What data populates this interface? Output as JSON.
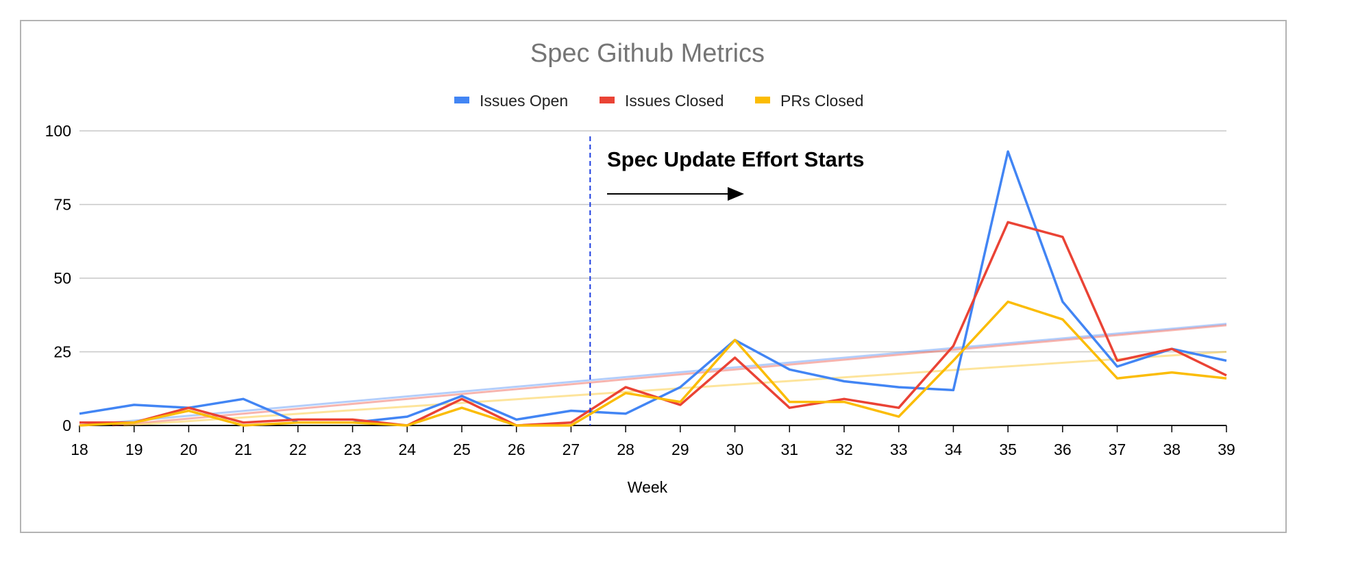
{
  "chart_data": {
    "type": "line",
    "title": "Spec Github Metrics",
    "xlabel": "Week",
    "ylabel": "",
    "categories": [
      "18",
      "19",
      "20",
      "21",
      "22",
      "23",
      "24",
      "25",
      "26",
      "27",
      "28",
      "29",
      "30",
      "31",
      "32",
      "33",
      "34",
      "35",
      "36",
      "37",
      "38",
      "39"
    ],
    "ylim": [
      0,
      100
    ],
    "yticks": [
      0,
      25,
      50,
      75,
      100
    ],
    "legend_position": "top-center",
    "series": [
      {
        "name": "Issues Open",
        "color": "#4285f4",
        "values": [
          4,
          7,
          6,
          9,
          1,
          1,
          3,
          10,
          2,
          5,
          4,
          13,
          29,
          19,
          15,
          13,
          12,
          93,
          42,
          20,
          26,
          22
        ],
        "trendline": [
          0,
          34.5
        ]
      },
      {
        "name": "Issues Closed",
        "color": "#ea4335",
        "values": [
          1,
          1,
          6,
          1,
          2,
          2,
          0,
          9,
          0,
          1,
          13,
          7,
          23,
          6,
          9,
          6,
          27,
          69,
          64,
          22,
          26,
          17
        ],
        "trendline": [
          -1,
          34
        ]
      },
      {
        "name": "PRs Closed",
        "color": "#fbbc04",
        "values": [
          0,
          1,
          5,
          0,
          1,
          1,
          0,
          6,
          0,
          0,
          11,
          8,
          29,
          8,
          8,
          3,
          22,
          42,
          36,
          16,
          18,
          16
        ],
        "trendline": [
          -1,
          25
        ]
      }
    ],
    "marker": {
      "x": 27.35,
      "style": "dashed",
      "color": "#1a3ce0"
    },
    "annotation": {
      "text": "Spec Update Effort Starts",
      "arrow": "right"
    }
  }
}
